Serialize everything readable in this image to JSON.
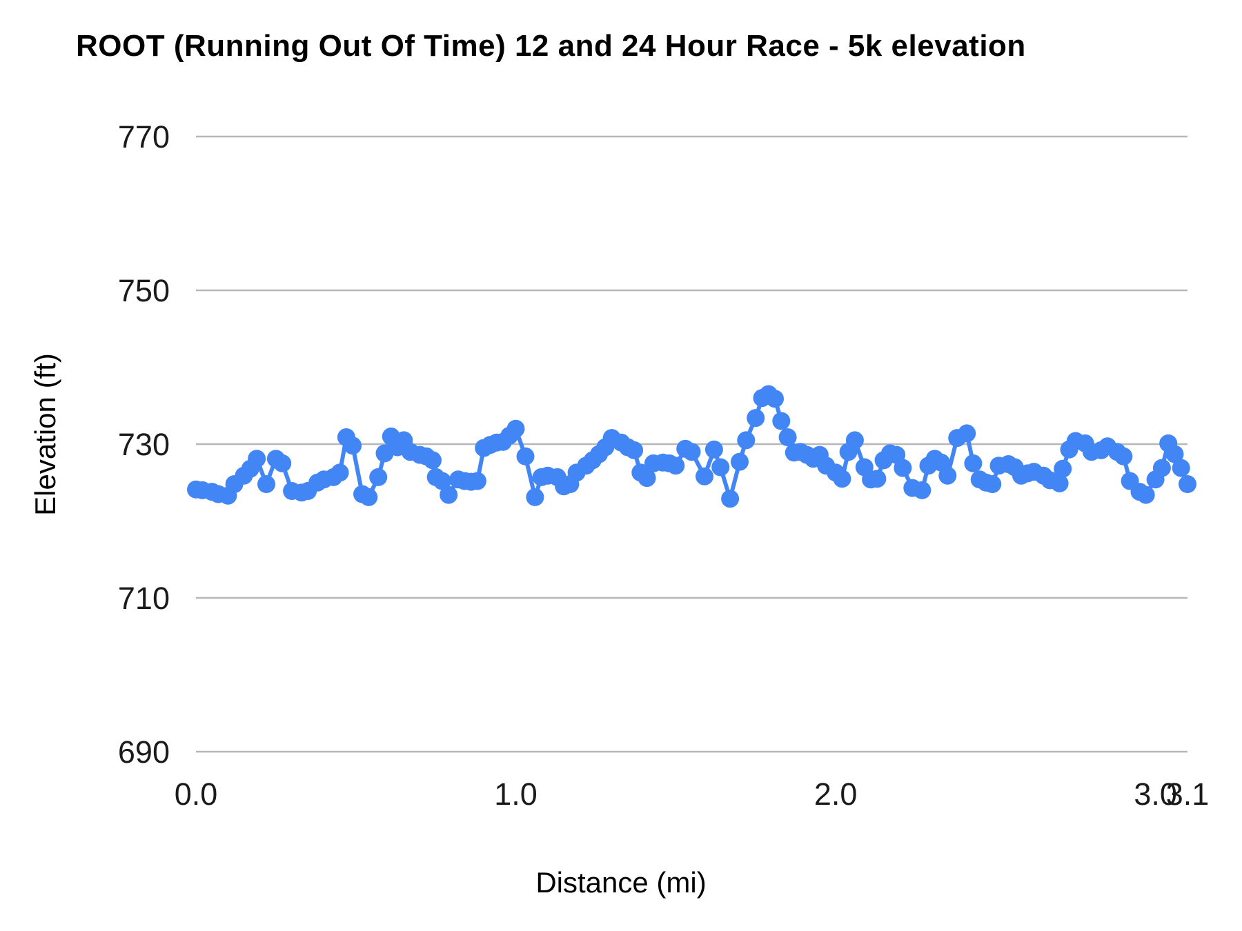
{
  "title": "ROOT (Running Out Of Time) 12 and 24 Hour Race - 5k elevation",
  "colors": {
    "series": "#4285f4",
    "grid": "#b7b7b7",
    "title_text": "#000000",
    "tick_text": "#1a1a1a"
  },
  "chart_data": {
    "type": "line",
    "title": "ROOT (Running Out Of Time) 12 and 24 Hour Race - 5k elevation",
    "xlabel": "Distance (mi)",
    "ylabel": "Elevation (ft)",
    "xlim": [
      0,
      3.1
    ],
    "ylim": [
      690,
      770
    ],
    "grid": "horizontal-only",
    "legend": "none",
    "marker": "circle",
    "x_ticks": [
      {
        "value": 0.0,
        "label": "0.0"
      },
      {
        "value": 1.0,
        "label": "1.0"
      },
      {
        "value": 2.0,
        "label": "2.0"
      },
      {
        "value": 3.0,
        "label": "3.0"
      },
      {
        "value": 3.1,
        "label": "3.1"
      }
    ],
    "y_ticks": [
      {
        "value": 770,
        "label": "770"
      },
      {
        "value": 750,
        "label": "750"
      },
      {
        "value": 730,
        "label": "730"
      },
      {
        "value": 710,
        "label": "710"
      },
      {
        "value": 690,
        "label": "690"
      }
    ],
    "series": [
      {
        "name": "Elevation (ft)",
        "color": "#4285f4",
        "points": [
          [
            0.0,
            724.1
          ],
          [
            0.02,
            724.0
          ],
          [
            0.05,
            723.8
          ],
          [
            0.07,
            723.5
          ],
          [
            0.1,
            723.3
          ],
          [
            0.12,
            724.8
          ],
          [
            0.15,
            725.9
          ],
          [
            0.17,
            726.8
          ],
          [
            0.19,
            728.1
          ],
          [
            0.22,
            724.8
          ],
          [
            0.25,
            728.1
          ],
          [
            0.27,
            727.5
          ],
          [
            0.3,
            723.9
          ],
          [
            0.33,
            723.7
          ],
          [
            0.35,
            723.9
          ],
          [
            0.38,
            725.0
          ],
          [
            0.4,
            725.4
          ],
          [
            0.43,
            725.7
          ],
          [
            0.45,
            726.3
          ],
          [
            0.47,
            730.9
          ],
          [
            0.49,
            729.8
          ],
          [
            0.52,
            723.5
          ],
          [
            0.54,
            723.1
          ],
          [
            0.57,
            725.7
          ],
          [
            0.59,
            728.8
          ],
          [
            0.61,
            731.0
          ],
          [
            0.63,
            729.6
          ],
          [
            0.65,
            730.5
          ],
          [
            0.67,
            729.0
          ],
          [
            0.7,
            728.6
          ],
          [
            0.72,
            728.4
          ],
          [
            0.74,
            727.9
          ],
          [
            0.75,
            725.7
          ],
          [
            0.77,
            725.2
          ],
          [
            0.79,
            723.4
          ],
          [
            0.82,
            725.4
          ],
          [
            0.84,
            725.2
          ],
          [
            0.86,
            725.1
          ],
          [
            0.88,
            725.2
          ],
          [
            0.9,
            729.5
          ],
          [
            0.92,
            729.9
          ],
          [
            0.94,
            730.2
          ],
          [
            0.96,
            730.3
          ],
          [
            0.98,
            731.1
          ],
          [
            1.0,
            732.0
          ],
          [
            1.03,
            728.4
          ],
          [
            1.06,
            723.1
          ],
          [
            1.08,
            725.7
          ],
          [
            1.1,
            725.9
          ],
          [
            1.13,
            725.7
          ],
          [
            1.15,
            724.5
          ],
          [
            1.17,
            724.8
          ],
          [
            1.19,
            726.3
          ],
          [
            1.22,
            727.2
          ],
          [
            1.24,
            727.9
          ],
          [
            1.26,
            728.7
          ],
          [
            1.28,
            729.6
          ],
          [
            1.3,
            730.8
          ],
          [
            1.33,
            730.2
          ],
          [
            1.35,
            729.6
          ],
          [
            1.37,
            729.2
          ],
          [
            1.39,
            726.3
          ],
          [
            1.41,
            725.6
          ],
          [
            1.43,
            727.5
          ],
          [
            1.46,
            727.6
          ],
          [
            1.48,
            727.5
          ],
          [
            1.5,
            727.2
          ],
          [
            1.53,
            729.4
          ],
          [
            1.55,
            729.0
          ],
          [
            1.59,
            725.8
          ],
          [
            1.62,
            729.3
          ],
          [
            1.64,
            727.0
          ],
          [
            1.67,
            722.9
          ],
          [
            1.7,
            727.7
          ],
          [
            1.72,
            730.5
          ],
          [
            1.75,
            733.4
          ],
          [
            1.77,
            736.0
          ],
          [
            1.79,
            736.5
          ],
          [
            1.81,
            735.9
          ],
          [
            1.83,
            733.0
          ],
          [
            1.85,
            730.9
          ],
          [
            1.87,
            728.9
          ],
          [
            1.89,
            729.0
          ],
          [
            1.91,
            728.6
          ],
          [
            1.93,
            728.1
          ],
          [
            1.95,
            728.6
          ],
          [
            1.97,
            727.2
          ],
          [
            2.0,
            726.3
          ],
          [
            2.02,
            725.5
          ],
          [
            2.04,
            729.0
          ],
          [
            2.06,
            730.5
          ],
          [
            2.09,
            727.0
          ],
          [
            2.11,
            725.4
          ],
          [
            2.13,
            725.5
          ],
          [
            2.15,
            727.9
          ],
          [
            2.17,
            728.8
          ],
          [
            2.19,
            728.6
          ],
          [
            2.21,
            726.9
          ],
          [
            2.24,
            724.3
          ],
          [
            2.27,
            724.0
          ],
          [
            2.29,
            727.2
          ],
          [
            2.31,
            728.1
          ],
          [
            2.33,
            727.6
          ],
          [
            2.35,
            725.9
          ],
          [
            2.38,
            730.8
          ],
          [
            2.41,
            731.4
          ],
          [
            2.43,
            727.5
          ],
          [
            2.45,
            725.4
          ],
          [
            2.47,
            725.0
          ],
          [
            2.49,
            724.8
          ],
          [
            2.51,
            727.2
          ],
          [
            2.54,
            727.4
          ],
          [
            2.56,
            727.0
          ],
          [
            2.58,
            725.9
          ],
          [
            2.6,
            726.2
          ],
          [
            2.62,
            726.4
          ],
          [
            2.65,
            725.9
          ],
          [
            2.67,
            725.3
          ],
          [
            2.7,
            724.9
          ],
          [
            2.71,
            726.8
          ],
          [
            2.73,
            729.3
          ],
          [
            2.75,
            730.4
          ],
          [
            2.78,
            730.1
          ],
          [
            2.8,
            729.0
          ],
          [
            2.83,
            729.2
          ],
          [
            2.85,
            729.7
          ],
          [
            2.88,
            729.0
          ],
          [
            2.9,
            728.4
          ],
          [
            2.92,
            725.2
          ],
          [
            2.95,
            723.8
          ],
          [
            2.97,
            723.4
          ],
          [
            3.0,
            725.4
          ],
          [
            3.02,
            726.9
          ],
          [
            3.04,
            730.1
          ],
          [
            3.06,
            728.7
          ],
          [
            3.08,
            726.9
          ],
          [
            3.1,
            724.8
          ]
        ]
      }
    ]
  }
}
